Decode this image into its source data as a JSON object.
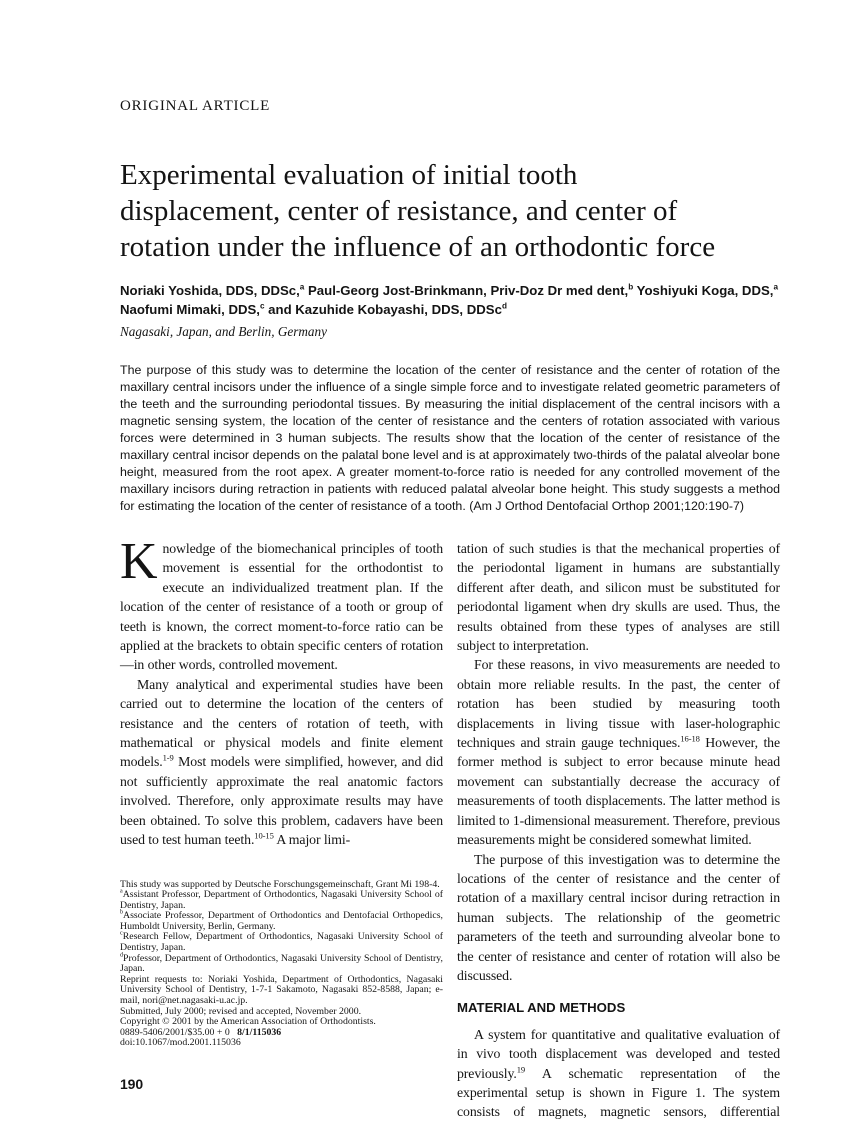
{
  "article": {
    "eyebrow": "ORIGINAL ARTICLE",
    "title_lines": [
      "Experimental evaluation of initial tooth",
      "displacement, center of resistance, and center of",
      "rotation under the influence of an orthodontic force"
    ],
    "authors_line1": "Noriaki Yoshida, DDS, DDSc,^{a} Paul-Georg Jost-Brinkmann, Priv-Doz Dr med dent,^{b} Yoshiyuki Koga, DDS,^{a}",
    "authors_line2": "Naofumi Mimaki, DDS,^{c} and Kazuhide Kobayashi, DDS, DDSc^{d}",
    "affiliation": "Nagasaki, Japan, and Berlin, Germany",
    "abstract": "The purpose of this study was to determine the location of the center of resistance and the center of rotation of the maxillary central incisors under the influence of a single simple force and to investigate related geometric parameters of the teeth and the surrounding periodontal tissues. By measuring the initial displacement of the central incisors with a magnetic sensing system, the location of the center of resistance and the centers of rotation associated with various forces were determined in 3 human subjects. The results show that the location of the center of resistance of the maxillary central incisor depends on the palatal bone level and is at approximately two-thirds of the palatal alveolar bone height, measured from the root apex. A greater moment-to-force ratio is needed for any controlled movement of the maxillary incisors during retraction in patients with reduced palatal alveolar bone height. This study suggests a method for estimating the location of the center of resistance of a tooth. (Am J Orthod Dentofacial Orthop 2001;120:190-7)"
  },
  "body": {
    "left": {
      "dropcap": "K",
      "par1": "nowledge of the biomechanical principles of tooth movement is essential for the orthodontist to execute an individualized treatment plan. If the location of the center of resistance of a tooth or group of teeth is known, the correct moment-to-force ratio can be applied at the brackets to obtain specific centers of rotation—in other words, controlled movement.",
      "par2": "Many analytical and experimental studies have been carried out to determine the location of the centers of resistance and the centers of rotation of teeth, with mathematical or physical models and finite element models.^{1-9} Most models were simplified, however, and did not sufficiently approximate the real anatomic factors involved. Therefore, only approximate results may have been obtained. To solve this problem, cadavers have been used to test human teeth.^{10-15} A major limi-"
    },
    "right": {
      "par1": "tation of such studies is that the mechanical properties of the periodontal ligament in humans are substantially different after death, and silicon must be substituted for periodontal ligament when dry skulls are used. Thus, the results obtained from these types of analyses are still subject to interpretation.",
      "par2": "For these reasons, in vivo measurements are needed to obtain more reliable results. In the past, the center of rotation has been studied by measuring tooth displacements in living tissue with laser-holographic techniques and strain gauge techniques.^{16-18} However, the former method is subject to error because minute head movement can substantially decrease the accuracy of measurements of tooth displacements. The latter method is limited to 1-dimensional measurement. Therefore, previous measurements might be considered somewhat limited.",
      "par3": "The purpose of this investigation was to determine the locations of the center of resistance and the center of rotation of a maxillary central incisor during retraction in human subjects. The relationship of the geometric parameters of the teeth and surrounding alveolar bone to the center of resistance and center of rotation will also be discussed.",
      "section_heading": "MATERIAL AND METHODS",
      "par4": "A system for quantitative and qualitative evaluation of in vivo tooth displacement was developed and tested previously.^{19} A schematic representation of the experimental setup is shown in Figure 1. The system consists of magnets, magnetic sensors, differential amplifiers,"
    }
  },
  "footnotes": [
    "This study was supported by Deutsche Forschungsgemeinschaft, Grant Mi 198-4.",
    "^{a}Assistant Professor, Department of Orthodontics, Nagasaki University School of Dentistry, Japan.",
    "^{b}Associate Professor, Department of Orthodontics and Dentofacial Orthopedics, Humboldt University, Berlin, Germany.",
    "^{c}Research Fellow, Department of Orthodontics, Nagasaki University School of Dentistry, Japan.",
    "^{d}Professor, Department of Orthodontics, Nagasaki University School of Dentistry, Japan.",
    "Reprint requests to: Noriaki Yoshida, Department of Orthodontics, Nagasaki University School of Dentistry, 1-7-1 Sakamoto, Nagasaki 852-8588, Japan; e-mail, nori@net.nagasaki-u.ac.jp.",
    "Submitted, July 2000; revised and accepted, November 2000.",
    "Copyright © 2001 by the American Association of Orthodontists.",
    "0889-5406/2001/$35.00 + 0   *{8/1/115036}",
    "doi:10.1067/mod.2001.115036"
  ],
  "footer": {
    "page_number": "190"
  }
}
